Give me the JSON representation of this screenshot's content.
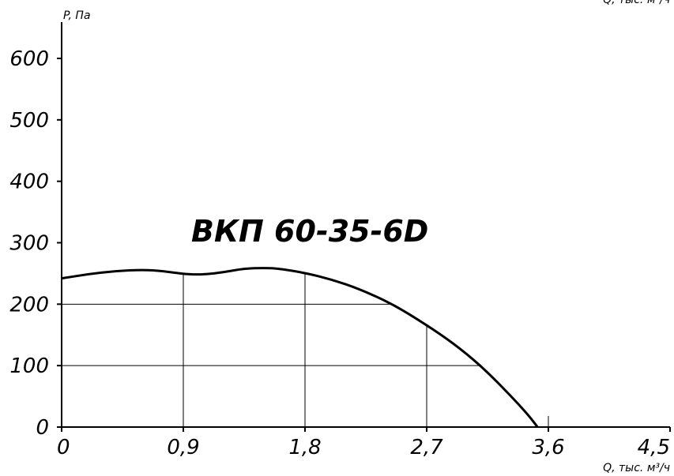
{
  "chart_data": {
    "type": "line",
    "title": "ВКП 60-35-6D",
    "xlabel": "Q, тыс. м³/ч",
    "ylabel": "P, Па",
    "x_ticks": [
      "0",
      "0,9",
      "1,8",
      "2,7",
      "3,6",
      "4,5"
    ],
    "y_ticks": [
      "0",
      "100",
      "200",
      "300",
      "400",
      "500",
      "600"
    ],
    "xlim": [
      0,
      4.5
    ],
    "ylim": [
      0,
      650
    ],
    "grid": "partial",
    "series": [
      {
        "x": [
          0,
          0.2,
          0.4,
          0.6,
          0.75,
          0.9,
          1.05,
          1.2,
          1.35,
          1.5,
          1.6,
          1.8,
          2.0,
          2.2,
          2.45,
          2.7,
          2.9,
          3.1,
          3.3,
          3.45,
          3.52
        ],
        "y": [
          242,
          249,
          254,
          256,
          254,
          249,
          248,
          252,
          258,
          259,
          258,
          251,
          240,
          225,
          200,
          166,
          136,
          100,
          56,
          20,
          0
        ]
      }
    ],
    "colors": {
      "line": "#000000",
      "grid": "#000000"
    }
  }
}
